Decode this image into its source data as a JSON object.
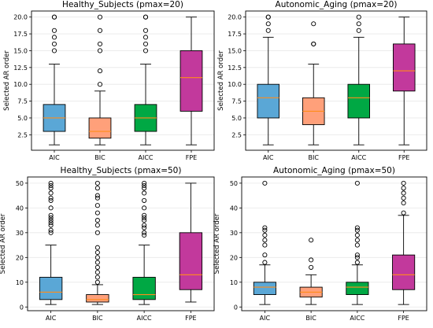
{
  "chart_data": [
    {
      "type": "box",
      "title": "Healthy_Subjects (pmax=20)",
      "ylabel": "Selected AR order",
      "ylim": [
        0.2,
        20.9
      ],
      "yticks": [
        2.5,
        5.0,
        7.5,
        10.0,
        12.5,
        15.0,
        17.5,
        20.0
      ],
      "ytick_labels": [
        "2.5",
        "5.0",
        "7.5",
        "10.0",
        "12.5",
        "15.0",
        "17.5",
        "20.0"
      ],
      "grid": "horizontal",
      "categories": [
        "AIC",
        "BIC",
        "AICC",
        "FPE"
      ],
      "boxes": [
        {
          "name": "AIC",
          "color": "#5aa7d6",
          "whislo": 1,
          "q1": 3,
          "median": 5,
          "q3": 7,
          "whishi": 13,
          "fliers": [
            15,
            16,
            17,
            18,
            20,
            20
          ]
        },
        {
          "name": "BIC",
          "color": "#ffa07a",
          "whislo": 1,
          "q1": 2,
          "median": 3,
          "q3": 5,
          "whishi": 9,
          "fliers": [
            10,
            12,
            15,
            16,
            18,
            20
          ]
        },
        {
          "name": "AICC",
          "color": "#00a844",
          "whislo": 1,
          "q1": 3,
          "median": 5,
          "q3": 7,
          "whishi": 13,
          "fliers": [
            15,
            16,
            17,
            18,
            20,
            20
          ]
        },
        {
          "name": "FPE",
          "color": "#c2399c",
          "whislo": 1,
          "q1": 6,
          "median": 11,
          "q3": 15,
          "whishi": 20,
          "fliers": []
        }
      ]
    },
    {
      "type": "box",
      "title": "Autonomic_Aging (pmax=20)",
      "ylabel": "Selected AR order",
      "ylim": [
        0.2,
        20.9
      ],
      "yticks": [
        2.5,
        5.0,
        7.5,
        10.0,
        12.5,
        15.0,
        17.5,
        20.0
      ],
      "ytick_labels": [
        "2.5",
        "5.0",
        "7.5",
        "10.0",
        "12.5",
        "15.0",
        "17.5",
        "20.0"
      ],
      "grid": "horizontal",
      "categories": [
        "AIC",
        "BIC",
        "AICC",
        "FPE"
      ],
      "boxes": [
        {
          "name": "AIC",
          "color": "#5aa7d6",
          "whislo": 1,
          "q1": 5,
          "median": 8,
          "q3": 10,
          "whishi": 17,
          "fliers": [
            18,
            19,
            20,
            20
          ]
        },
        {
          "name": "BIC",
          "color": "#ffa07a",
          "whislo": 1,
          "q1": 4,
          "median": 6,
          "q3": 8,
          "whishi": 13,
          "fliers": [
            16,
            16,
            19
          ]
        },
        {
          "name": "AICC",
          "color": "#00a844",
          "whislo": 1,
          "q1": 5,
          "median": 8,
          "q3": 10,
          "whishi": 17,
          "fliers": [
            18,
            19,
            20
          ]
        },
        {
          "name": "FPE",
          "color": "#c2399c",
          "whislo": 1,
          "q1": 9,
          "median": 12,
          "q3": 16,
          "whishi": 20,
          "fliers": []
        }
      ]
    },
    {
      "type": "box",
      "title": "Healthy_Subjects (pmax=50)",
      "ylabel": "Selected AR order",
      "ylim": [
        -1.5,
        52.5
      ],
      "yticks": [
        0,
        10,
        20,
        30,
        40,
        50
      ],
      "ytick_labels": [
        "0",
        "10",
        "20",
        "30",
        "40",
        "50"
      ],
      "grid": "horizontal",
      "categories": [
        "AIC",
        "BIC",
        "AICC",
        "FPE"
      ],
      "boxes": [
        {
          "name": "AIC",
          "color": "#5aa7d6",
          "whislo": 1,
          "q1": 3,
          "median": 6,
          "q3": 12,
          "whishi": 25,
          "fliers": [
            30,
            31,
            33,
            34,
            35,
            36,
            37,
            40,
            43,
            44,
            46,
            48,
            49,
            50
          ]
        },
        {
          "name": "BIC",
          "color": "#ffa07a",
          "whislo": 1,
          "q1": 2,
          "median": 3,
          "q3": 5,
          "whishi": 9,
          "fliers": [
            10,
            12,
            14,
            16,
            18,
            20,
            22,
            24,
            30,
            33,
            35,
            38,
            41,
            44,
            45,
            48,
            50
          ]
        },
        {
          "name": "AICC",
          "color": "#00a844",
          "whislo": 1,
          "q1": 3,
          "median": 5,
          "q3": 12,
          "whishi": 25,
          "fliers": [
            29,
            30,
            32,
            33,
            35,
            36,
            37,
            40,
            43,
            46,
            48,
            49,
            50
          ]
        },
        {
          "name": "FPE",
          "color": "#c2399c",
          "whislo": 2,
          "q1": 7,
          "median": 13,
          "q3": 30,
          "whishi": 50,
          "fliers": []
        }
      ]
    },
    {
      "type": "box",
      "title": "Autonomic_Aging (pmax=50)",
      "ylabel": "Selected AR order",
      "ylim": [
        -1.5,
        52.5
      ],
      "yticks": [
        0,
        10,
        20,
        30,
        40,
        50
      ],
      "ytick_labels": [
        "0",
        "10",
        "20",
        "30",
        "40",
        "50"
      ],
      "grid": "horizontal",
      "categories": [
        "AIC",
        "BIC",
        "AICC",
        "FPE"
      ],
      "boxes": [
        {
          "name": "AIC",
          "color": "#5aa7d6",
          "whislo": 1,
          "q1": 5,
          "median": 8,
          "q3": 10,
          "whishi": 17,
          "fliers": [
            18,
            21,
            25,
            27,
            29,
            31,
            32,
            50
          ]
        },
        {
          "name": "BIC",
          "color": "#ffa07a",
          "whislo": 1,
          "q1": 4,
          "median": 6,
          "q3": 8,
          "whishi": 13,
          "fliers": [
            16,
            19,
            27
          ]
        },
        {
          "name": "AICC",
          "color": "#00a844",
          "whislo": 1,
          "q1": 5,
          "median": 8,
          "q3": 10,
          "whishi": 17,
          "fliers": [
            18,
            20,
            21,
            25,
            27,
            29,
            31,
            32,
            50
          ]
        },
        {
          "name": "FPE",
          "color": "#c2399c",
          "whislo": 1,
          "q1": 7,
          "median": 13,
          "q3": 21,
          "whishi": 37,
          "fliers": [
            38,
            42,
            44,
            46,
            48,
            50
          ]
        }
      ]
    }
  ]
}
